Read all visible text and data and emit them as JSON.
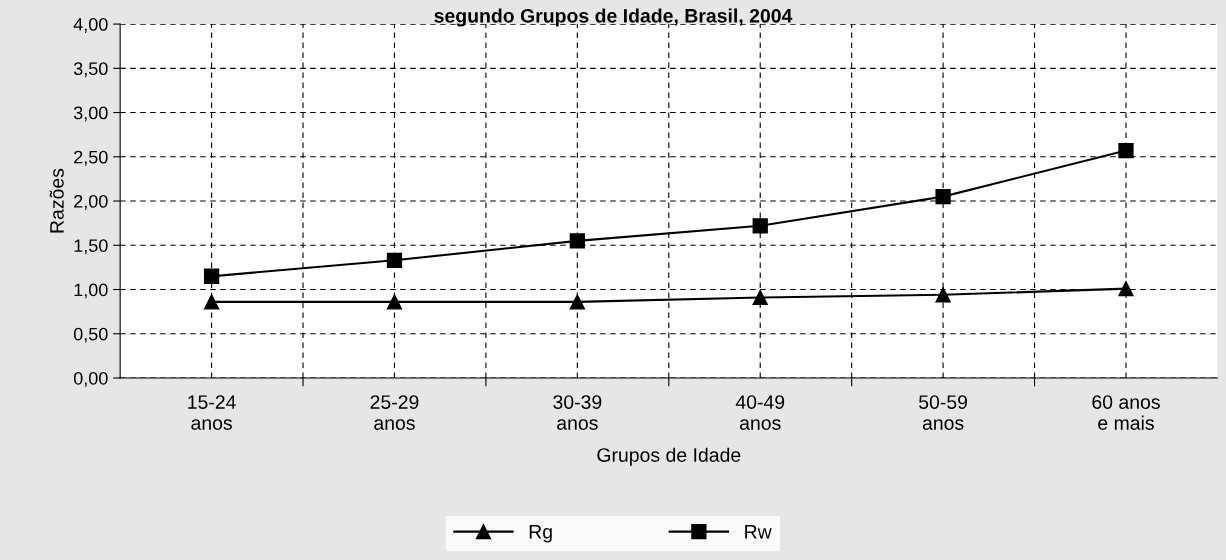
{
  "chart_data": {
    "type": "line",
    "title": "segundo Grupos de Idade, Brasil, 2004",
    "xlabel": "Grupos de Idade",
    "ylabel": "Razões",
    "categories": [
      "15-24\nanos",
      "25-29\nanos",
      "30-39\nanos",
      "40-49\nanos",
      "50-59\nanos",
      "60 anos\ne mais"
    ],
    "series": [
      {
        "name": "Rg",
        "color": "#000000",
        "marker": "triangle",
        "values": [
          0.86,
          0.86,
          0.86,
          0.91,
          0.94,
          1.01
        ]
      },
      {
        "name": "Rw",
        "color": "#000000",
        "marker": "square",
        "values": [
          1.15,
          1.33,
          1.55,
          1.72,
          2.05,
          2.57
        ]
      }
    ],
    "ylim": [
      0,
      4
    ],
    "yticks": [
      {
        "value": 0,
        "label": "0,00"
      },
      {
        "value": 0.5,
        "label": "0,50"
      },
      {
        "value": 1,
        "label": "1,00"
      },
      {
        "value": 1.5,
        "label": "1,50"
      },
      {
        "value": 2,
        "label": "2,00"
      },
      {
        "value": 2.5,
        "label": "2,50"
      },
      {
        "value": 3,
        "label": "3,00"
      },
      {
        "value": 3.5,
        "label": "3,50"
      },
      {
        "value": 4,
        "label": "4,00"
      }
    ],
    "grid": true,
    "legend": "bottom",
    "line_style": "solid"
  }
}
